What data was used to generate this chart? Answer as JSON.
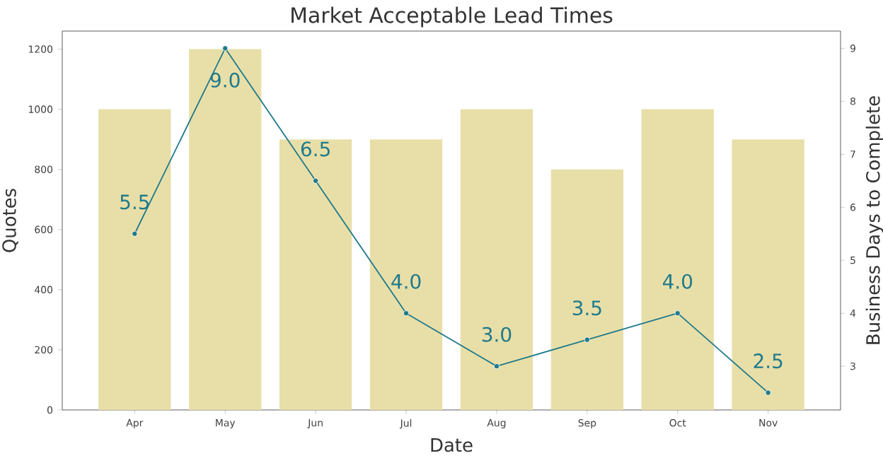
{
  "chart_data": {
    "type": "bar",
    "title": "Market Acceptable Lead Times",
    "xlabel": "Date",
    "ylabel": "Quotes",
    "y2label": "Business Days to Complete",
    "categories": [
      "Apr",
      "May",
      "Jun",
      "Jul",
      "Aug",
      "Sep",
      "Oct",
      "Nov"
    ],
    "series": [
      {
        "color": "#e8dfa8",
        "values": [
          1000,
          1200,
          900,
          900,
          1000,
          800,
          1000,
          900
        ]
      },
      {
        "type": "line",
        "axis": "y2",
        "color": "#1f7a8c",
        "marker": "circle",
        "values": [
          5.5,
          9.0,
          6.5,
          4.0,
          3.0,
          3.5,
          4.0,
          2.5
        ],
        "value_labels": [
          "5.5",
          "9.0",
          "6.5",
          "4.0",
          "3.0",
          "3.5",
          "4.0",
          "2.5"
        ]
      }
    ],
    "ylim": [
      0,
      1260
    ],
    "yticks": [
      0,
      200,
      400,
      600,
      800,
      1000,
      1200
    ],
    "y2lim": [
      2.175,
      9.325
    ],
    "y2ticks": [
      3,
      4,
      5,
      6,
      7,
      8,
      9
    ],
    "grid": false
  }
}
